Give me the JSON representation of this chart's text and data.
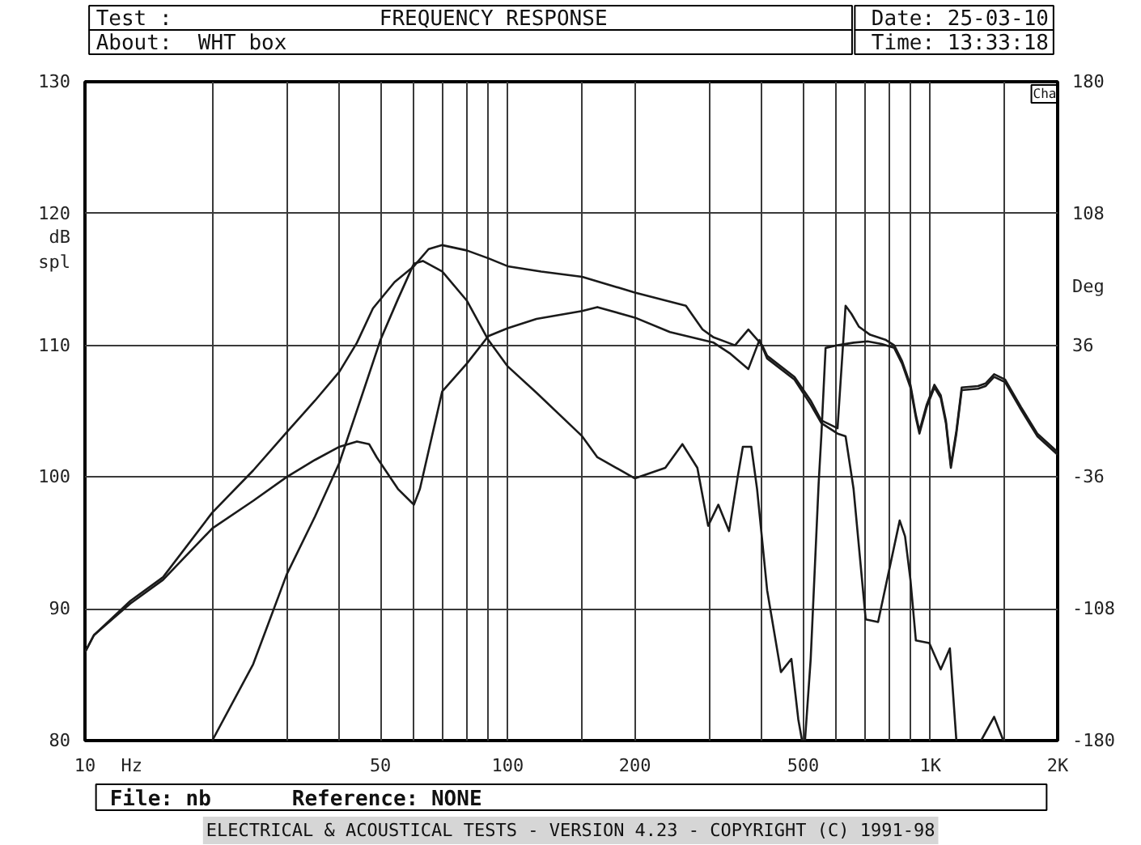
{
  "chart_data": {
    "type": "line",
    "title": "FREQUENCY RESPONSE",
    "xlabel": "Hz",
    "ylabel": "dB spl",
    "y2label": "Deg",
    "annotations": [
      "Test :",
      "About:",
      "WHT box",
      "Date: 25-03-10",
      "Time: 13:33:18",
      "File: nb",
      "Reference: NONE",
      "ELECTRICAL & ACOUSTICAL TESTS - VERSION 4.23 - COPYRIGHT (C) 1991-98",
      "Cha"
    ],
    "log": "x",
    "grid": true,
    "xlim": [
      10,
      2000
    ],
    "ylim": [
      80,
      130
    ],
    "y2lim": [
      -180,
      180
    ],
    "xticks": [
      10,
      {
        "value": 20,
        "label": null
      },
      {
        "value": 30,
        "label": null
      },
      {
        "value": 40,
        "label": null
      },
      50,
      {
        "value": 60,
        "label": null
      },
      {
        "value": 70,
        "label": null
      },
      {
        "value": 80,
        "label": null
      },
      {
        "value": 90,
        "label": null
      },
      100,
      {
        "value": 150,
        "label": null
      },
      200,
      {
        "value": 300,
        "label": null
      },
      {
        "value": 400,
        "label": null
      },
      500,
      {
        "value": 600,
        "label": null
      },
      {
        "value": 700,
        "label": null
      },
      {
        "value": 800,
        "label": null
      },
      {
        "value": 900,
        "label": null
      },
      {
        "value": 1000,
        "label": "1K"
      },
      {
        "value": 1500,
        "label": null
      },
      {
        "value": 2000,
        "label": "2K"
      }
    ],
    "yticks": [
      80,
      90,
      100,
      110,
      120,
      130
    ],
    "y2ticks": [
      -180,
      -108,
      -36,
      36,
      108,
      180
    ],
    "series": [
      {
        "color": "#1a1a1a",
        "x": [
          10,
          10.5,
          12.8,
          15.3,
          20,
          25,
          30,
          35,
          40,
          44,
          48,
          54,
          60,
          65,
          70,
          80,
          90,
          100,
          120,
          150,
          200,
          264,
          289,
          307,
          345,
          371,
          400,
          411,
          477,
          521,
          552,
          603,
          630,
          650,
          678,
          720,
          785,
          821,
          857,
          897,
          924,
          942,
          980,
          1022,
          1058,
          1088,
          1118,
          1152,
          1186,
          1296,
          1350,
          1415,
          1502,
          1639,
          1790,
          2000
        ],
        "values": [
          86.7,
          88,
          90.6,
          92.4,
          97.3,
          100.5,
          103.4,
          105.8,
          108,
          110.2,
          112.8,
          114.8,
          116,
          117.3,
          117.6,
          117.2,
          116.6,
          116,
          115.6,
          115.2,
          114,
          113,
          111.2,
          110.6,
          110.0,
          111.2,
          110.0,
          109.2,
          107.6,
          105.8,
          104.3,
          103.7,
          113.0,
          112.4,
          111.4,
          110.8,
          110.4,
          110.0,
          108.8,
          107.0,
          104.7,
          103.5,
          105.5,
          107.0,
          106.2,
          104.3,
          100.9,
          103.5,
          106.8,
          106.9,
          107.1,
          107.8,
          107.4,
          105.3,
          103.3,
          101.9
        ]
      },
      {
        "color": "#1a1a1a",
        "x": [
          10,
          10.5,
          12.8,
          15.3,
          20,
          25,
          30,
          35,
          40,
          44,
          47,
          49,
          55,
          60,
          62,
          70,
          80,
          90,
          100,
          117,
          150,
          163,
          200,
          242,
          307,
          335,
          371,
          394,
          411,
          477,
          521,
          552,
          603,
          630,
          658,
          703,
          752,
          846,
          871,
          897,
          924,
          994,
          1058,
          1112,
          1152,
          1230,
          1318,
          1415,
          1488
        ],
        "values": [
          86.7,
          88,
          90.4,
          92.2,
          96.1,
          98.2,
          100,
          101.3,
          102.3,
          102.7,
          102.5,
          101.5,
          99.1,
          97.9,
          99.1,
          106.5,
          108.6,
          110.7,
          111.3,
          112,
          112.6,
          112.9,
          112.1,
          111,
          110.2,
          109.4,
          108.2,
          110.4,
          109.0,
          107.4,
          105.5,
          104.1,
          103.3,
          103.1,
          99.1,
          89.2,
          89.0,
          96.7,
          95.5,
          92.2,
          87.6,
          87.4,
          85.4,
          87.0,
          80,
          null,
          80,
          81.8,
          80
        ]
      },
      {
        "color": "#1a1a1a",
        "x": [
          20,
          25,
          30,
          35,
          40,
          45,
          50,
          55,
          60,
          63,
          70,
          80,
          90,
          100,
          117,
          150,
          163,
          200,
          236,
          259,
          281,
          298,
          315,
          334,
          350,
          360,
          377,
          389,
          411,
          443,
          469,
          487,
          497,
          505,
          521,
          544,
          552,
          565,
          603,
          658,
          710,
          767,
          821,
          857,
          897,
          924,
          942,
          980,
          1022,
          1058,
          1088,
          1118,
          1152,
          1186,
          1296,
          1350,
          1415,
          1502,
          1639,
          1790,
          2000
        ],
        "values": [
          80,
          85.8,
          92.6,
          97,
          101.1,
          106,
          110.4,
          113.5,
          116.2,
          116.4,
          115.6,
          113.4,
          110.4,
          108.4,
          106.4,
          103.1,
          101.5,
          99.9,
          100.7,
          102.5,
          100.7,
          96.3,
          97.9,
          95.9,
          100,
          102.3,
          102.3,
          99.1,
          91.4,
          85.2,
          86.2,
          81.6,
          80,
          80,
          86.2,
          99.5,
          103.1,
          109.8,
          110,
          110.2,
          110.3,
          110.1,
          109.8,
          108.6,
          106.8,
          104.5,
          103.3,
          105.3,
          106.8,
          106.0,
          104.1,
          100.7,
          103.3,
          106.6,
          106.7,
          106.9,
          107.6,
          107.2,
          105.1,
          103.1,
          101.7
        ]
      }
    ]
  }
}
